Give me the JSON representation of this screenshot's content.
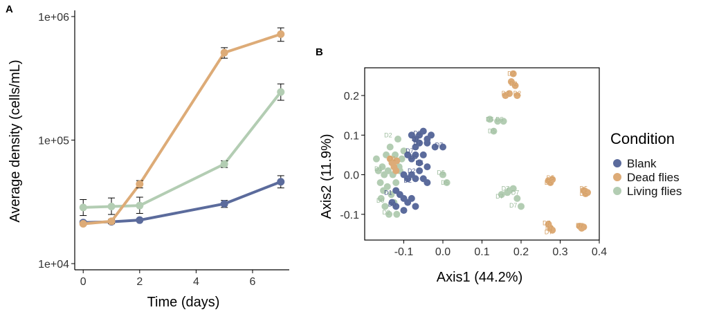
{
  "colors": {
    "blank": "#5b6b9c",
    "dead": "#ddab77",
    "living": "#b3cdb3",
    "axis": "#000000",
    "pointLabelBlank": "#4d5c8c",
    "pointLabelDead": "#d39e62",
    "pointLabelLiving": "#9fbd9f"
  },
  "chart_data": [
    {
      "panel": "A",
      "type": "line",
      "xlabel": "Time (days)",
      "ylabel": "Average density (cells/mL)",
      "yscale": "log10",
      "xlim": [
        -0.3,
        7.3
      ],
      "ylim_log10": [
        3.95,
        6.05
      ],
      "xticks": [
        0,
        2,
        4,
        6
      ],
      "xtick_labels": [
        "0",
        "2",
        "4",
        "6"
      ],
      "yticks": [
        10000,
        100000,
        1000000
      ],
      "ytick_labels": [
        "1e+04",
        "1e+05",
        "1e+06"
      ],
      "x": [
        0,
        1,
        2,
        5,
        7
      ],
      "series": [
        {
          "name": "Living flies",
          "color_key": "living",
          "values": [
            28500,
            29000,
            29500,
            64000,
            245000
          ],
          "err": [
            [
              24500,
              33000
            ],
            [
              25000,
              34000
            ],
            [
              25500,
              34500
            ],
            [
              60000,
              68000
            ],
            [
              210000,
              285000
            ]
          ]
        },
        {
          "name": "Blank",
          "color_key": "blank",
          "values": [
            21500,
            21800,
            22500,
            30500,
            46000
          ],
          "err": [
            [
              20800,
              22200
            ],
            [
              21000,
              22600
            ],
            [
              22000,
              23000
            ],
            [
              28500,
              32500
            ],
            [
              41000,
              51500
            ]
          ]
        },
        {
          "name": "Dead flies",
          "color_key": "dead",
          "values": [
            21000,
            22000,
            44000,
            510000,
            720000
          ],
          "err": [
            [
              20500,
              21500
            ],
            [
              21200,
              22800
            ],
            [
              41000,
              47000
            ],
            [
              460000,
              560000
            ],
            [
              630000,
              810000
            ]
          ]
        }
      ]
    },
    {
      "panel": "B",
      "type": "scatter",
      "xlabel": "Axis1 (44.2%)",
      "ylabel": "Axis2 (11.9%)",
      "xlim": [
        -0.2,
        0.4
      ],
      "ylim": [
        -0.165,
        0.27
      ],
      "xticks": [
        -0.1,
        0.0,
        0.1,
        0.2,
        0.3,
        0.4
      ],
      "xtick_labels": [
        "-0.1",
        "0.0",
        "0.1",
        "0.2",
        "0.3",
        "0.4"
      ],
      "yticks": [
        -0.1,
        0.0,
        0.1,
        0.2
      ],
      "ytick_labels": [
        "-0.1",
        "0.0",
        "0.1",
        "0.2"
      ],
      "legend": {
        "title": "Condition",
        "position": "right",
        "entries": [
          {
            "label": "Blank",
            "color_key": "blank"
          },
          {
            "label": "Dead flies",
            "color_key": "dead"
          },
          {
            "label": "Living flies",
            "color_key": "living"
          }
        ]
      },
      "series": [
        {
          "name": "Living flies",
          "color_key": "living",
          "points": [
            [
              -0.17,
              0.04
            ],
            [
              -0.165,
              0.01
            ],
            [
              -0.16,
              -0.02
            ],
            [
              -0.158,
              -0.06
            ],
            [
              -0.155,
              0.02
            ],
            [
              -0.152,
              -0.04
            ],
            [
              -0.15,
              0.0
            ],
            [
              -0.148,
              -0.08
            ],
            [
              -0.145,
              0.05
            ],
            [
              -0.142,
              -0.03
            ],
            [
              -0.14,
              0.01
            ],
            [
              -0.138,
              -0.1
            ],
            [
              -0.135,
              0.07
            ],
            [
              -0.132,
              -0.05
            ],
            [
              -0.13,
              0.03
            ],
            [
              -0.128,
              0.0
            ],
            [
              -0.125,
              -0.07
            ],
            [
              -0.122,
              0.05
            ],
            [
              -0.12,
              -0.02
            ],
            [
              -0.118,
              -0.1
            ],
            [
              -0.115,
              0.09
            ],
            [
              -0.112,
              0.02
            ],
            [
              -0.11,
              0.01
            ],
            [
              -0.105,
              0.04
            ],
            [
              -0.1,
              0.06
            ],
            [
              0.0,
              0.0
            ],
            [
              0.01,
              -0.02
            ],
            [
              0.12,
              0.14
            ],
            [
              0.14,
              0.135
            ],
            [
              0.155,
              0.135
            ],
            [
              0.13,
              0.11
            ],
            [
              0.17,
              -0.04
            ],
            [
              0.18,
              -0.035
            ],
            [
              0.15,
              -0.05
            ],
            [
              0.19,
              -0.06
            ],
            [
              0.2,
              -0.08
            ],
            [
              0.165,
              -0.045
            ]
          ],
          "labels": [
            [
              "D2",
              -0.14,
              0.1
            ],
            [
              "D5",
              0.12,
              0.14
            ],
            [
              "D5",
              0.145,
              0.14
            ],
            [
              "D5",
              0.125,
              0.11
            ],
            [
              "D7",
              0.16,
              -0.035
            ],
            [
              "D7",
              0.185,
              -0.045
            ],
            [
              "D7",
              0.145,
              -0.055
            ],
            [
              "D7",
              0.18,
              -0.078
            ],
            [
              "D5",
              -0.005,
              0.005
            ],
            [
              "D5",
              0.005,
              -0.02
            ],
            [
              "D0",
              -0.16,
              -0.065
            ],
            [
              "D2",
              -0.145,
              -0.095
            ],
            [
              "D1",
              -0.165,
              0.015
            ]
          ]
        },
        {
          "name": "Dead flies",
          "color_key": "dead",
          "points": [
            [
              -0.13,
              0.03
            ],
            [
              -0.125,
              0.02
            ],
            [
              -0.12,
              0.01
            ],
            [
              -0.135,
              0.04
            ],
            [
              -0.118,
              0.035
            ],
            [
              0.16,
              0.2
            ],
            [
              0.17,
              0.205
            ],
            [
              0.175,
              0.235
            ],
            [
              0.18,
              0.255
            ],
            [
              0.185,
              0.225
            ],
            [
              0.19,
              0.2
            ],
            [
              0.27,
              -0.015
            ],
            [
              0.275,
              -0.02
            ],
            [
              0.28,
              -0.012
            ],
            [
              0.36,
              -0.04
            ],
            [
              0.365,
              -0.048
            ],
            [
              0.37,
              -0.045
            ],
            [
              0.27,
              -0.125
            ],
            [
              0.275,
              -0.135
            ],
            [
              0.28,
              -0.14
            ],
            [
              0.35,
              -0.13
            ],
            [
              0.355,
              -0.135
            ],
            [
              0.36,
              -0.132
            ]
          ],
          "labels": [
            [
              "D2",
              0.175,
              0.255
            ],
            [
              "D2",
              0.18,
              0.23
            ],
            [
              "D2",
              0.16,
              0.205
            ],
            [
              "D2",
              0.19,
              0.205
            ],
            [
              "D5",
              0.275,
              -0.008
            ],
            [
              "D5",
              0.27,
              -0.02
            ],
            [
              "D5",
              0.36,
              -0.035
            ],
            [
              "D5",
              0.36,
              -0.048
            ],
            [
              "D7",
              0.265,
              -0.122
            ],
            [
              "D7",
              0.272,
              -0.135
            ],
            [
              "D7",
              0.27,
              -0.145
            ],
            [
              "D7",
              0.35,
              -0.128
            ],
            [
              "D1",
              -0.13,
              0.04
            ]
          ]
        },
        {
          "name": "Blank",
          "color_key": "blank",
          "points": [
            [
              -0.08,
              0.1
            ],
            [
              -0.07,
              0.09
            ],
            [
              -0.06,
              0.1
            ],
            [
              -0.05,
              0.11
            ],
            [
              -0.04,
              0.09
            ],
            [
              -0.07,
              0.07
            ],
            [
              -0.06,
              0.08
            ],
            [
              -0.04,
              0.08
            ],
            [
              -0.03,
              0.1
            ],
            [
              0.0,
              0.07
            ],
            [
              -0.02,
              0.07
            ],
            [
              -0.09,
              0.05
            ],
            [
              -0.08,
              0.04
            ],
            [
              -0.07,
              0.05
            ],
            [
              -0.06,
              0.03
            ],
            [
              -0.05,
              0.05
            ],
            [
              -0.04,
              0.02
            ],
            [
              -0.1,
              0.0
            ],
            [
              -0.09,
              -0.01
            ],
            [
              -0.08,
              0.0
            ],
            [
              -0.07,
              -0.01
            ],
            [
              -0.06,
              0.01
            ],
            [
              -0.05,
              -0.01
            ],
            [
              -0.04,
              -0.02
            ],
            [
              -0.12,
              -0.04
            ],
            [
              -0.11,
              -0.05
            ],
            [
              -0.1,
              -0.06
            ],
            [
              -0.09,
              -0.07
            ],
            [
              -0.08,
              -0.06
            ],
            [
              -0.07,
              -0.08
            ],
            [
              -0.13,
              -0.07
            ],
            [
              -0.12,
              -0.08
            ],
            [
              -0.1,
              -0.09
            ]
          ],
          "labels": [
            [
              "D5",
              -0.065,
              0.105
            ],
            [
              "D7",
              -0.07,
              0.09
            ],
            [
              "D7",
              -0.065,
              0.08
            ],
            [
              "D7",
              -0.01,
              0.075
            ],
            [
              "D7",
              -0.085,
              0.06
            ],
            [
              "D5",
              -0.075,
              0.045
            ],
            [
              "D5",
              -0.06,
              0.03
            ],
            [
              "D2",
              -0.08,
              0.01
            ],
            [
              "D2",
              -0.09,
              -0.015
            ],
            [
              "D0",
              -0.13,
              -0.075
            ],
            [
              "D1",
              -0.14,
              -0.045
            ]
          ]
        }
      ]
    }
  ],
  "panel_labels": {
    "a": "A",
    "b": "B"
  }
}
